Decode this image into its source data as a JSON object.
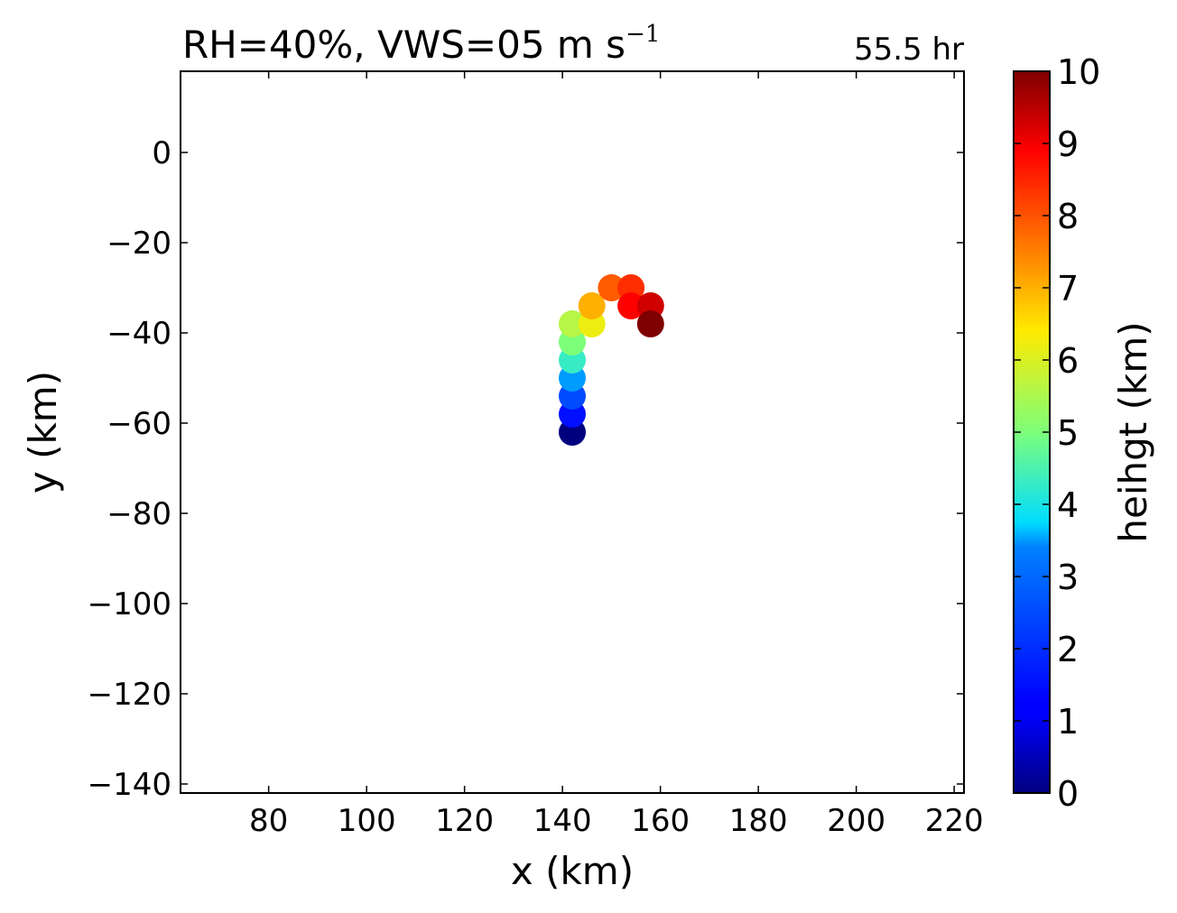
{
  "title": {
    "main": "RH=40%, VWS=05 m s",
    "superscript": "−1",
    "time_label": "55.5 hr",
    "time_color": "#0000ff"
  },
  "chart_data": {
    "type": "scatter",
    "xlabel": "x (km)",
    "ylabel": "y (km)",
    "xlim": [
      62,
      222
    ],
    "ylim": [
      -142,
      18
    ],
    "xticks": [
      80,
      100,
      120,
      140,
      160,
      180,
      200,
      220
    ],
    "yticks": [
      0,
      -20,
      -40,
      -60,
      -80,
      -100,
      -120,
      -140
    ],
    "xtick_labels": [
      "80",
      "100",
      "120",
      "140",
      "160",
      "180",
      "200",
      "220"
    ],
    "ytick_labels": [
      "0",
      "−20",
      "−40",
      "−60",
      "−80",
      "−100",
      "−120",
      "−140"
    ],
    "grid": false,
    "points": [
      {
        "x": 142,
        "y": -62,
        "height": 0.0
      },
      {
        "x": 142,
        "y": -58,
        "height": 1.5
      },
      {
        "x": 142,
        "y": -54,
        "height": 2.5
      },
      {
        "x": 142,
        "y": -50,
        "height": 3.5
      },
      {
        "x": 142,
        "y": -46,
        "height": 4.3
      },
      {
        "x": 142,
        "y": -42,
        "height": 5.0
      },
      {
        "x": 142,
        "y": -38,
        "height": 5.6
      },
      {
        "x": 146,
        "y": -38,
        "height": 6.2
      },
      {
        "x": 146,
        "y": -34,
        "height": 7.0
      },
      {
        "x": 150,
        "y": -30,
        "height": 7.9
      },
      {
        "x": 154,
        "y": -30,
        "height": 8.4
      },
      {
        "x": 154,
        "y": -34,
        "height": 8.9
      },
      {
        "x": 158,
        "y": -34,
        "height": 9.3
      },
      {
        "x": 158,
        "y": -38,
        "height": 10.0
      }
    ],
    "colorbar": {
      "label": "heihgt (km)",
      "min": 0,
      "max": 10,
      "ticks": [
        0,
        1,
        2,
        3,
        4,
        5,
        6,
        7,
        8,
        9,
        10
      ],
      "tick_labels": [
        "0",
        "1",
        "2",
        "3",
        "4",
        "5",
        "6",
        "7",
        "8",
        "9",
        "10"
      ],
      "colormap": "jet"
    }
  }
}
